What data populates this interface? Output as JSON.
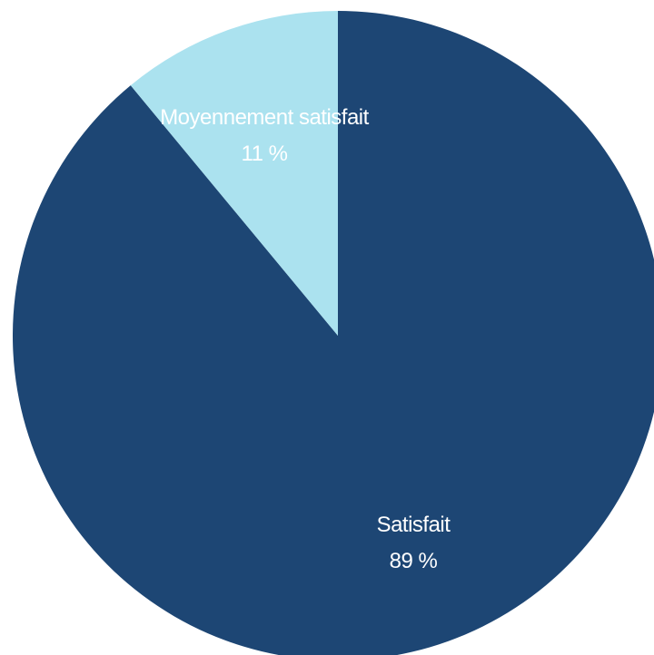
{
  "chart_data": {
    "type": "pie",
    "title": "",
    "slices": [
      {
        "label": "Satisfait",
        "value": 89,
        "value_label": "89 %",
        "color": "#1d4674"
      },
      {
        "label": "Moyennement satisfait",
        "value": 11,
        "value_label": "11 %",
        "color": "#abe2ef"
      }
    ],
    "start_angle": "12 o'clock",
    "direction": "clockwise",
    "legend": "none"
  }
}
